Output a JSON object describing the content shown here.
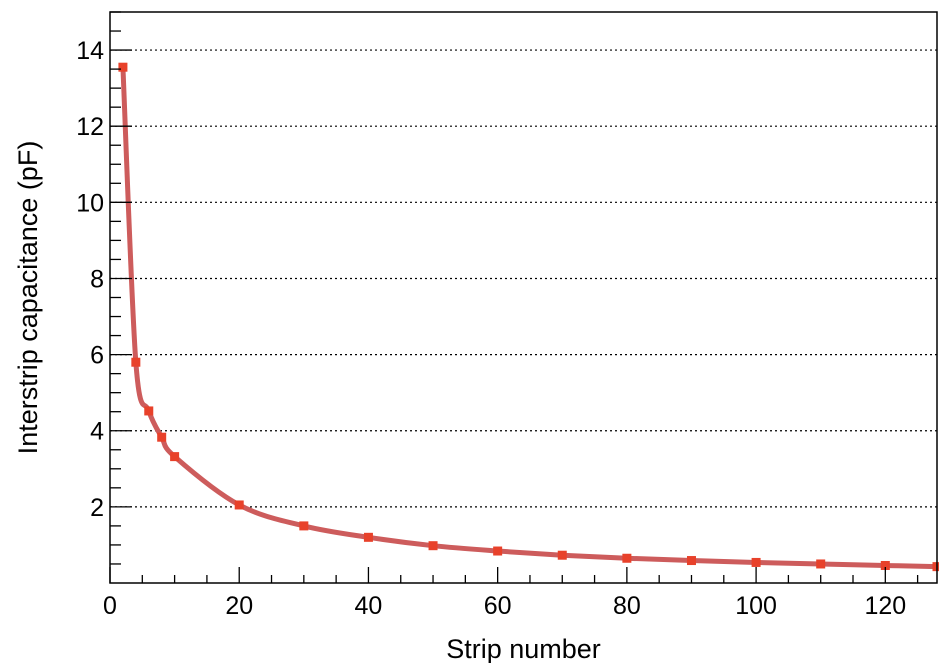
{
  "chart_data": {
    "type": "line",
    "title": "",
    "xlabel": "Strip number",
    "ylabel": "Interstrip capacitance (pF)",
    "xlim": [
      0,
      128
    ],
    "ylim": [
      0,
      15
    ],
    "x_ticks": [
      0,
      20,
      40,
      60,
      80,
      100,
      120
    ],
    "x_tick_labels": [
      "0",
      "20",
      "40",
      "60",
      "80",
      "100",
      "120"
    ],
    "y_ticks": [
      2,
      4,
      6,
      8,
      10,
      12,
      14
    ],
    "y_tick_labels": [
      "2",
      "4",
      "6",
      "8",
      "10",
      "12",
      "14"
    ],
    "grid": "horizontal dotted",
    "legend": "none",
    "colors": {
      "line": "#cd5c5c",
      "marker": "#e8412a",
      "grid": "#000000"
    },
    "series": [
      {
        "marker": "square",
        "x": [
          2,
          4,
          6,
          8,
          10,
          20,
          30,
          40,
          50,
          60,
          70,
          80,
          90,
          100,
          110,
          120,
          128
        ],
        "values": [
          13.55,
          5.8,
          4.52,
          3.83,
          3.32,
          2.05,
          1.5,
          1.2,
          0.98,
          0.84,
          0.73,
          0.65,
          0.59,
          0.54,
          0.5,
          0.46,
          0.43
        ]
      }
    ]
  }
}
